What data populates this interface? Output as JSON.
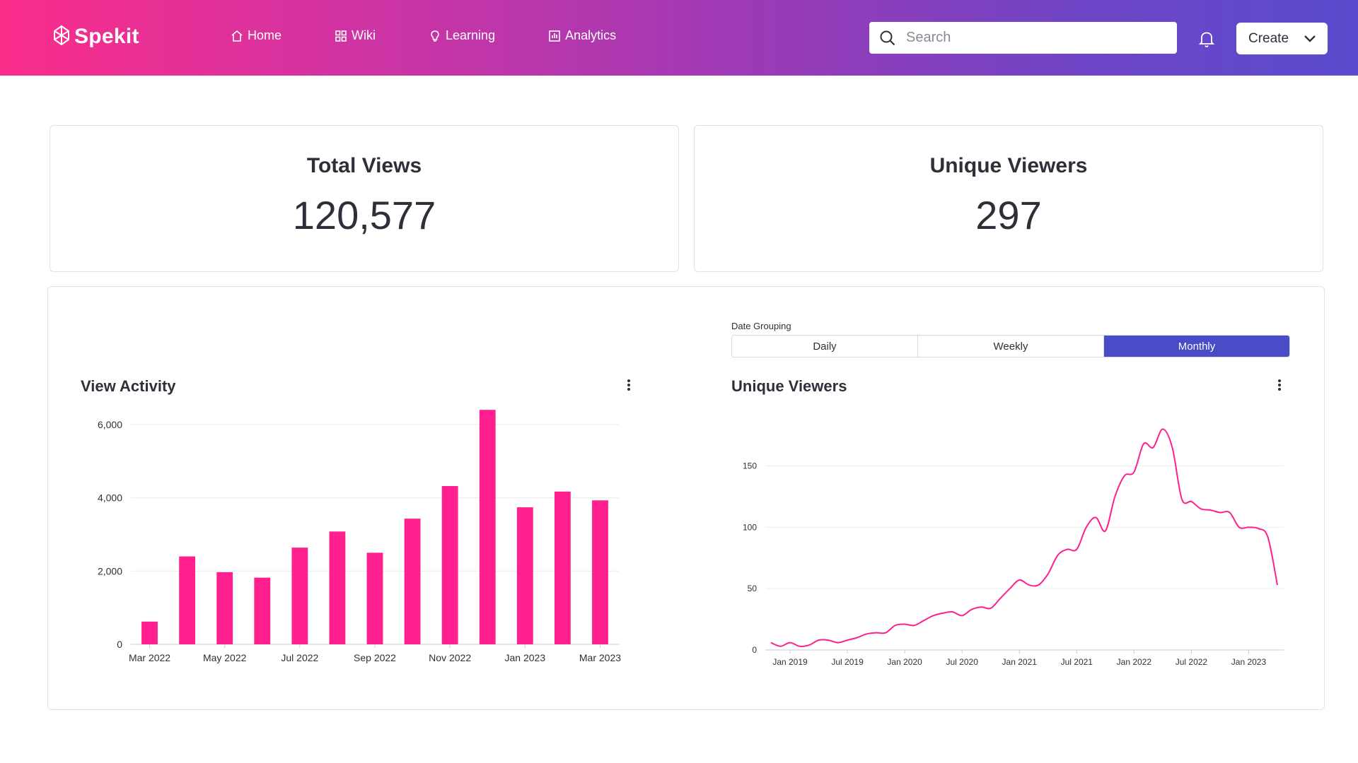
{
  "app": {
    "name": "Spekit"
  },
  "nav": {
    "items": [
      {
        "label": "Home",
        "icon": "home-icon"
      },
      {
        "label": "Wiki",
        "icon": "grid-icon"
      },
      {
        "label": "Learning",
        "icon": "lightbulb-icon"
      },
      {
        "label": "Analytics",
        "icon": "analytics-icon"
      }
    ]
  },
  "search": {
    "placeholder": "Search"
  },
  "create_button": {
    "label": "Create"
  },
  "kpis": [
    {
      "title": "Total Views",
      "value": "120,577"
    },
    {
      "title": "Unique Viewers",
      "value": "297"
    }
  ],
  "date_grouping": {
    "label": "Date Grouping",
    "options": [
      "Daily",
      "Weekly",
      "Monthly"
    ],
    "selected": "Monthly"
  },
  "colors": {
    "accent": "#ff1f8e",
    "selected": "#4a4bc6",
    "header_start": "#fb2d8a",
    "header_end": "#5a4ccd"
  },
  "chart_data": [
    {
      "type": "bar",
      "title": "View Activity",
      "categories": [
        "Mar 2022",
        "Apr 2022",
        "May 2022",
        "Jun 2022",
        "Jul 2022",
        "Aug 2022",
        "Sep 2022",
        "Oct 2022",
        "Nov 2022",
        "Dec 2022",
        "Jan 2023",
        "Feb 2023",
        "Mar 2023"
      ],
      "values": [
        620,
        2400,
        1970,
        1820,
        2640,
        3080,
        2500,
        3430,
        4320,
        6400,
        3740,
        4170,
        3930
      ],
      "tick_labels": [
        "Mar 2022",
        "May 2022",
        "Jul 2022",
        "Sep 2022",
        "Nov 2022",
        "Jan 2023",
        "Mar 2023"
      ],
      "yticks": [
        "0",
        "2,000",
        "4,000",
        "6,000"
      ],
      "ylim": [
        0,
        6500
      ],
      "grid": true,
      "color": "#ff1f8e"
    },
    {
      "type": "line",
      "title": "Unique Viewers",
      "x": [
        "2018-11",
        "2018-12",
        "2019-01",
        "2019-02",
        "2019-03",
        "2019-04",
        "2019-05",
        "2019-06",
        "2019-07",
        "2019-08",
        "2019-09",
        "2019-10",
        "2019-11",
        "2019-12",
        "2020-01",
        "2020-02",
        "2020-03",
        "2020-04",
        "2020-05",
        "2020-06",
        "2020-07",
        "2020-08",
        "2020-09",
        "2020-10",
        "2020-11",
        "2020-12",
        "2021-01",
        "2021-02",
        "2021-03",
        "2021-04",
        "2021-05",
        "2021-06",
        "2021-07",
        "2021-08",
        "2021-09",
        "2021-10",
        "2021-11",
        "2021-12",
        "2022-01",
        "2022-02",
        "2022-03",
        "2022-04",
        "2022-05",
        "2022-06",
        "2022-07",
        "2022-08",
        "2022-09",
        "2022-10",
        "2022-11",
        "2022-12",
        "2023-01",
        "2023-02",
        "2023-03",
        "2023-04"
      ],
      "y": [
        6,
        3,
        6,
        3,
        4,
        8,
        8,
        6,
        8,
        10,
        13,
        14,
        14,
        20,
        21,
        20,
        24,
        28,
        30,
        31,
        28,
        33,
        35,
        34,
        42,
        50,
        57,
        53,
        53,
        62,
        77,
        82,
        82,
        100,
        108,
        97,
        125,
        142,
        145,
        168,
        165,
        180,
        165,
        123,
        121,
        115,
        114,
        112,
        112,
        100,
        100,
        99,
        92,
        53
      ],
      "tick_labels": [
        "Jan 2019",
        "Jul 2019",
        "Jan 2020",
        "Jul 2020",
        "Jan 2021",
        "Jul 2021",
        "Jan 2022",
        "Jul 2022",
        "Jan 2023"
      ],
      "yticks": [
        "0",
        "50",
        "100",
        "150"
      ],
      "ylim": [
        0,
        190
      ],
      "grid": true,
      "color": "#ff1f8e"
    }
  ]
}
